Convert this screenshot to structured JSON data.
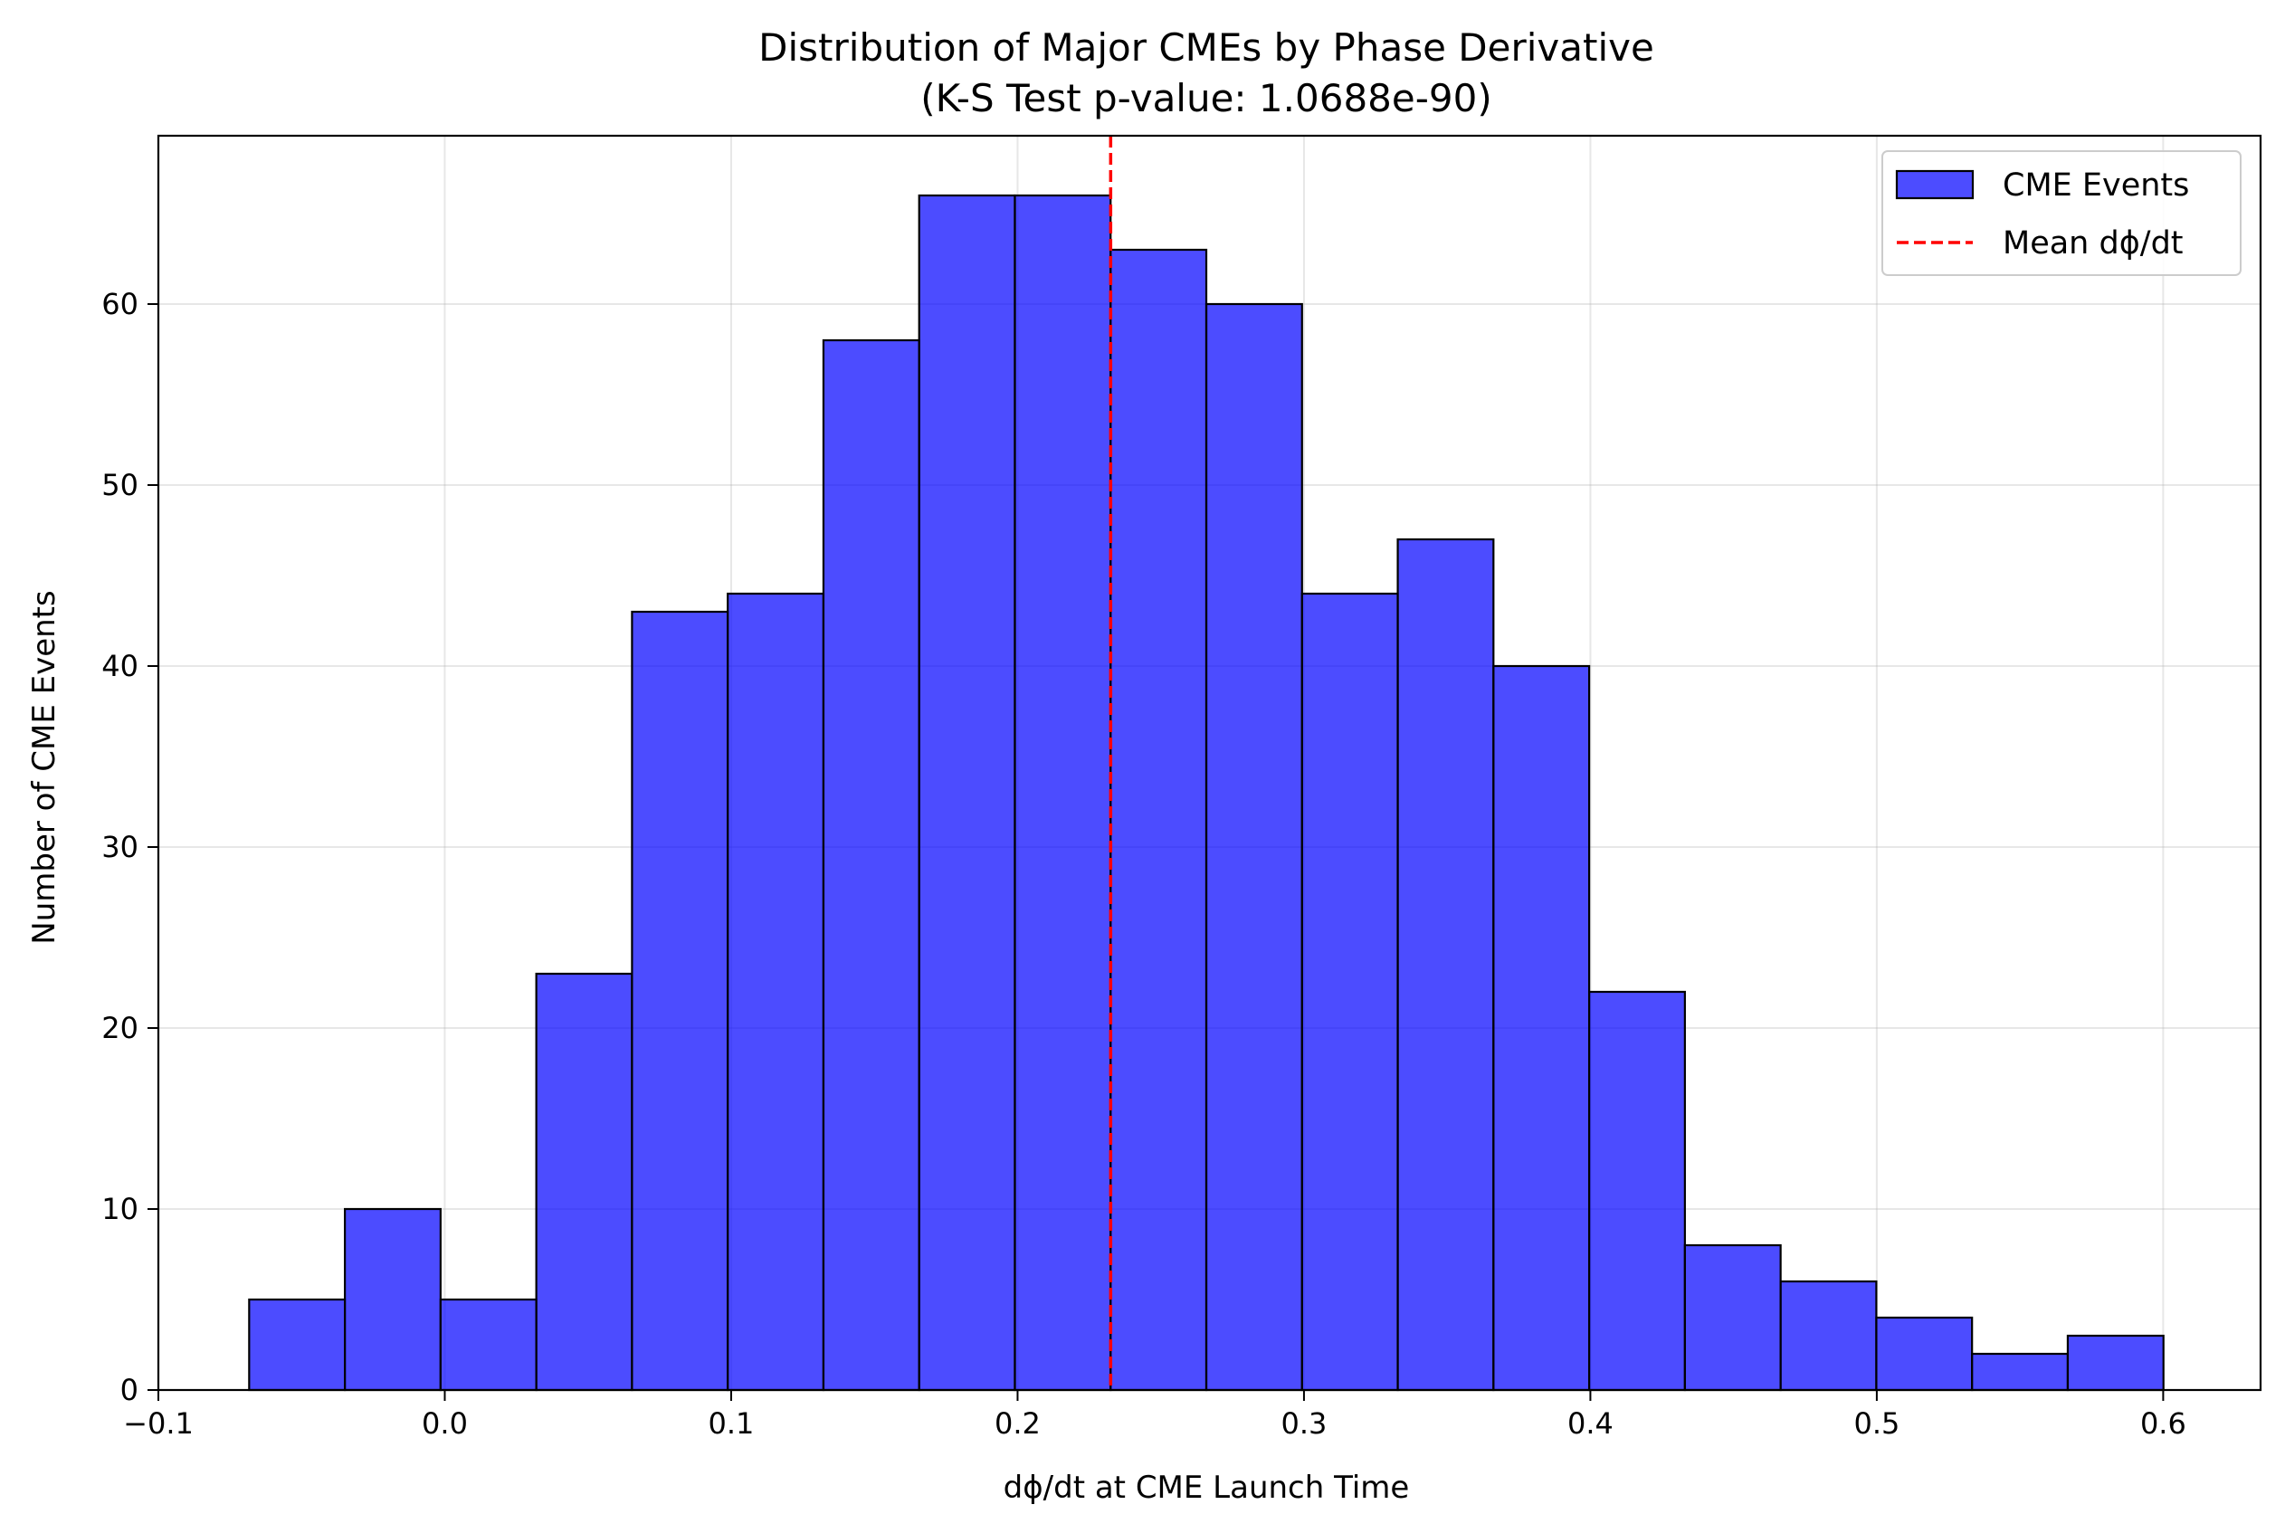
{
  "chart_data": {
    "type": "bar",
    "subtype": "histogram",
    "title": "Distribution of Major CMEs by Phase Derivative",
    "subtitle": "(K-S Test p-value: 1.0688e-90)",
    "xlabel": "dϕ/dt at CME Launch Time",
    "ylabel": "Number of CME Events",
    "xlim": [
      -0.1,
      0.634
    ],
    "ylim": [
      0,
      69.3
    ],
    "xticks": [
      -0.1,
      0.0,
      0.1,
      0.2,
      0.3,
      0.4,
      0.5,
      0.6
    ],
    "xtick_labels": [
      "−0.1",
      "0.0",
      "0.1",
      "0.2",
      "0.3",
      "0.4",
      "0.5",
      "0.6"
    ],
    "yticks": [
      0,
      10,
      20,
      30,
      40,
      50,
      60
    ],
    "ytick_labels": [
      "0",
      "10",
      "20",
      "30",
      "40",
      "50",
      "60"
    ],
    "bin_start": -0.0683,
    "bin_width": 0.03342,
    "counts": [
      5,
      10,
      5,
      23,
      43,
      44,
      58,
      66,
      66,
      63,
      60,
      44,
      47,
      40,
      22,
      8,
      6,
      4,
      2,
      3
    ],
    "bar_color": "#0000ff",
    "bar_opacity": 0.7,
    "edge_color": "#000000",
    "mean_line": {
      "x": 0.2325,
      "color": "#ff0000",
      "style": "dashed"
    },
    "grid": true,
    "legend": {
      "placement": "upper right",
      "entries": [
        {
          "label": "CME Events",
          "type": "patch"
        },
        {
          "label": "Mean dϕ/dt",
          "type": "line"
        }
      ]
    }
  }
}
